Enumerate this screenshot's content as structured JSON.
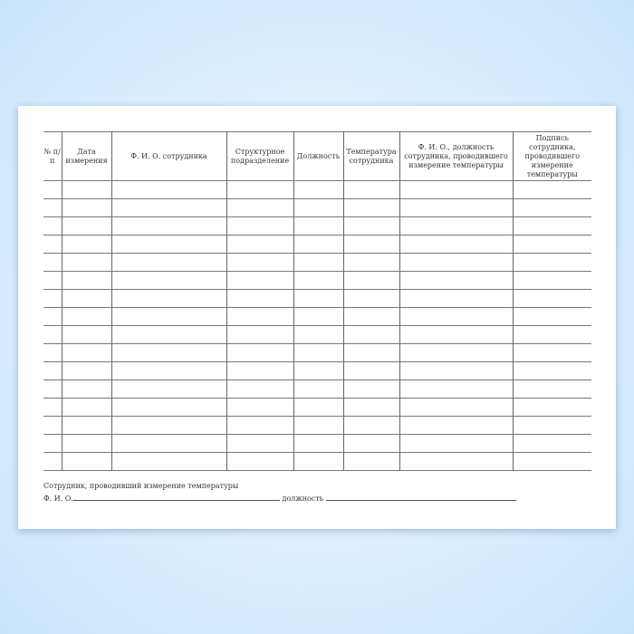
{
  "table": {
    "headers": [
      "№ п/п",
      "Дата измерения",
      "Ф. И. О. сотрудника",
      "Структурное подразделение",
      "Должность",
      "Температура сотрудника",
      "Ф. И. О., должность сотрудника, проводившего измерение температуры",
      "Подпись сотрудника, проводившего измерение температуры"
    ],
    "row_count": 16
  },
  "footer": {
    "caption": "Сотрудник, проводивший измерение температуры",
    "fio_label": "Ф. И. О.",
    "position_label": "должность"
  }
}
